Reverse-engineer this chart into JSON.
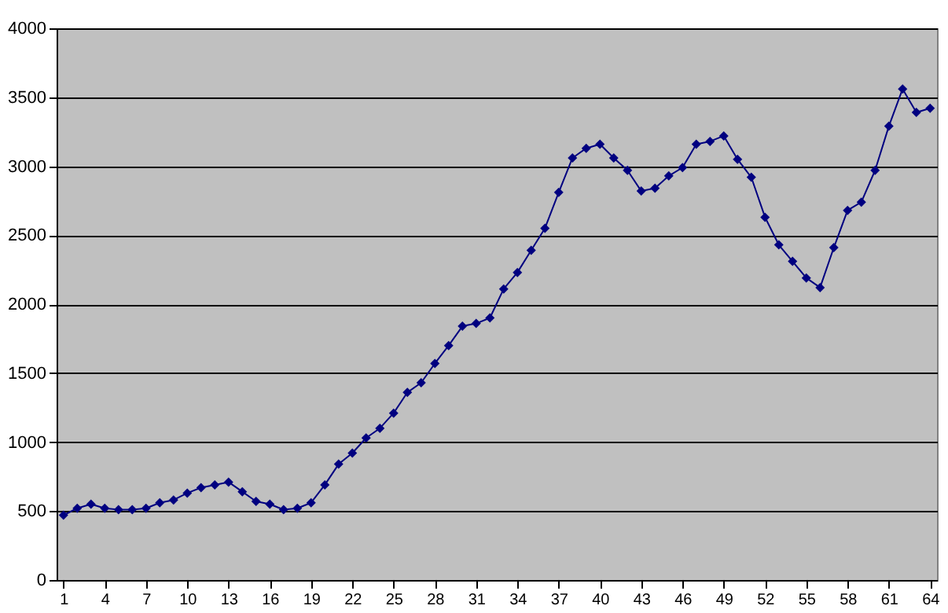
{
  "chart_data": {
    "type": "line",
    "x": [
      1,
      2,
      3,
      4,
      5,
      6,
      7,
      8,
      9,
      10,
      11,
      12,
      13,
      14,
      15,
      16,
      17,
      18,
      19,
      20,
      21,
      22,
      23,
      24,
      25,
      26,
      27,
      28,
      29,
      30,
      31,
      32,
      33,
      34,
      35,
      36,
      37,
      38,
      39,
      40,
      41,
      42,
      43,
      44,
      45,
      46,
      47,
      48,
      49,
      50,
      51,
      52,
      53,
      54,
      55,
      56,
      57,
      58,
      59,
      60,
      61,
      62,
      63,
      64
    ],
    "series": [
      {
        "color": "#000080",
        "values": [
          470,
          520,
          550,
          520,
          510,
          510,
          520,
          560,
          580,
          630,
          670,
          690,
          710,
          640,
          570,
          550,
          510,
          520,
          560,
          690,
          840,
          920,
          1030,
          1100,
          1210,
          1360,
          1430,
          1570,
          1700,
          1840,
          1860,
          1900,
          2110,
          2230,
          2390,
          2550,
          2810,
          3060,
          3130,
          3160,
          3060,
          2970,
          2820,
          2840,
          2930,
          2990,
          3160,
          3180,
          3220,
          3050,
          2920,
          2630,
          2430,
          2310,
          2190,
          2120,
          2410,
          2680,
          2740,
          2970,
          3290,
          3560,
          3390,
          3420
        ]
      }
    ],
    "xlim": [
      0.5,
      64.5
    ],
    "xticks": [
      1,
      4,
      7,
      10,
      13,
      16,
      19,
      22,
      25,
      28,
      31,
      34,
      37,
      40,
      43,
      46,
      49,
      52,
      55,
      58,
      61,
      64
    ],
    "ylim": [
      0,
      4000
    ],
    "yticks": [
      0,
      500,
      1000,
      1500,
      2000,
      2500,
      3000,
      3500,
      4000
    ],
    "grid": "y",
    "marker": "diamond",
    "line_style": "solid"
  }
}
